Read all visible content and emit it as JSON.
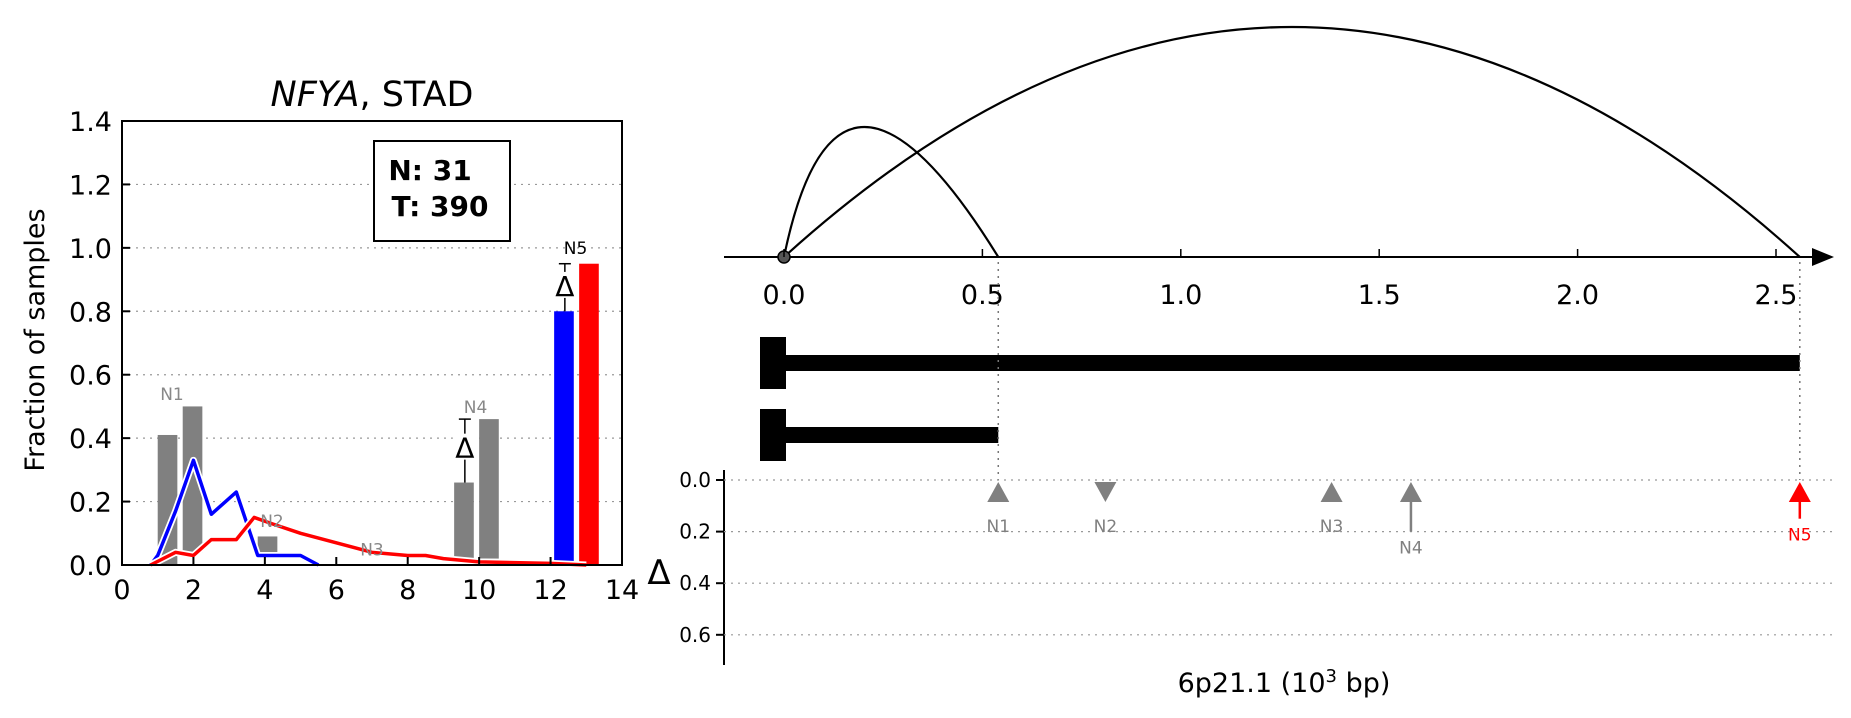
{
  "chart_data": [
    {
      "type": "bar",
      "title": {
        "italic": "NFYA",
        "rest": ", STAD"
      },
      "ylabel": "Fraction of samples",
      "xlim": [
        0,
        14
      ],
      "ylim": [
        0,
        1.4
      ],
      "xticks": [
        0,
        2,
        4,
        6,
        8,
        10,
        12,
        14
      ],
      "yticks": [
        0.0,
        0.2,
        0.4,
        0.6,
        0.8,
        1.0,
        1.2,
        1.4
      ],
      "ytick_labels": [
        "0.0",
        "0.2",
        "0.4",
        "0.6",
        "0.8",
        "1.0",
        "1.2",
        "1.4"
      ],
      "grid": "dotted-horizontal",
      "legend_box": {
        "line1": "N: 31",
        "line2": "T: 390"
      },
      "bars": [
        {
          "x": 1.0,
          "value": 0.41,
          "color": "#808080"
        },
        {
          "x": 1.7,
          "value": 0.5,
          "color": "#808080",
          "bottom": 0.04
        },
        {
          "x": 3.8,
          "value": 0.09,
          "color": "#808080",
          "bottom": 0.04
        },
        {
          "x": 9.3,
          "value": 0.26,
          "color": "#808080",
          "bottom": 0.02
        },
        {
          "x": 10.0,
          "value": 0.46,
          "color": "#808080",
          "bottom": 0.02
        },
        {
          "x": 12.1,
          "value": 0.8,
          "color": "#0000ff"
        },
        {
          "x": 12.8,
          "value": 0.95,
          "color": "#ff0000"
        }
      ],
      "bar_width": 0.55,
      "bar_labels": [
        {
          "text": "N1",
          "x": 1.4,
          "y": 0.52,
          "color": "#888888"
        },
        {
          "text": "N2",
          "x": 4.2,
          "y": 0.12,
          "color": "#888888"
        },
        {
          "text": "N3",
          "x": 7.0,
          "y": 0.03,
          "color": "#888888"
        },
        {
          "text": "N4",
          "x": 9.9,
          "y": 0.48,
          "color": "#888888"
        },
        {
          "text": "N5",
          "x": 12.7,
          "y": 0.98,
          "color": "#000000"
        }
      ],
      "delta_markers": [
        {
          "x": 9.6,
          "y": 0.37,
          "err_low": 0.26,
          "err_high": 0.46
        },
        {
          "x": 12.4,
          "y": 0.88,
          "err_low": 0.8,
          "err_high": 0.95
        }
      ],
      "delta_symbol": "Δ",
      "series": [
        {
          "color": "#0000ff",
          "x": [
            0.8,
            1.0,
            1.5,
            2.0,
            2.5,
            3.2,
            3.8,
            4.2,
            5.0,
            5.5
          ],
          "values": [
            0.0,
            0.03,
            0.17,
            0.33,
            0.16,
            0.23,
            0.03,
            0.03,
            0.03,
            0.0
          ]
        },
        {
          "color": "#ff0000",
          "x": [
            0.8,
            1.5,
            2.0,
            2.5,
            3.2,
            3.7,
            4.2,
            5.0,
            6.0,
            7.0,
            8.0,
            8.5,
            9.0,
            10.0,
            12.0,
            13.0
          ],
          "values": [
            0.0,
            0.04,
            0.03,
            0.08,
            0.08,
            0.15,
            0.13,
            0.1,
            0.07,
            0.04,
            0.03,
            0.03,
            0.02,
            0.01,
            0.005,
            0.0
          ]
        }
      ]
    },
    {
      "type": "genome-track",
      "xlabel_main": "6p21.1 (10",
      "xlabel_sup": "3",
      "xlabel_tail": " bp)",
      "xlim": [
        0,
        2.7
      ],
      "xticks": [
        0.0,
        0.5,
        1.0,
        1.5,
        2.0,
        2.5
      ],
      "xtick_labels": [
        "0.0",
        "0.5",
        "1.0",
        "1.5",
        "2.0",
        "2.5"
      ],
      "arcs": [
        {
          "from": 0.0,
          "to": 0.54
        },
        {
          "from": 0.0,
          "to": 2.56
        }
      ],
      "isoforms": [
        {
          "start": 0.0,
          "end": 2.56
        },
        {
          "start": 0.0,
          "end": 0.54
        }
      ],
      "delta_axis": {
        "label": "Δ",
        "ylim": [
          0,
          0.7
        ],
        "yticks": [
          0.0,
          0.2,
          0.4,
          0.6
        ],
        "ytick_labels": [
          "0.0",
          "0.2",
          "0.4",
          "0.6"
        ]
      },
      "markers": [
        {
          "name": "N1",
          "x": 0.54,
          "delta": 0.05,
          "dir": "up",
          "color": "#808080"
        },
        {
          "name": "N2",
          "x": 0.81,
          "delta": 0.05,
          "dir": "down",
          "color": "#808080"
        },
        {
          "name": "N3",
          "x": 1.38,
          "delta": 0.05,
          "dir": "up",
          "color": "#808080"
        },
        {
          "name": "N4",
          "x": 1.58,
          "delta": 0.2,
          "dir": "up",
          "color": "#808080"
        },
        {
          "name": "N5",
          "x": 2.56,
          "delta": 0.15,
          "dir": "up",
          "color": "#ff0000"
        }
      ]
    }
  ]
}
